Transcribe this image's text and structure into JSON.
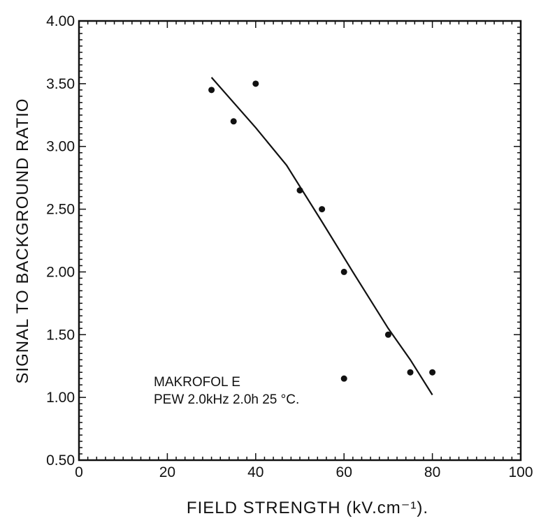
{
  "chart_data": {
    "type": "scatter",
    "xlabel": "FIELD STRENGTH (kV.cm⁻¹).",
    "ylabel": "SIGNAL TO BACKGROUND RATIO",
    "xlim": [
      0,
      100
    ],
    "ylim": [
      0.5,
      4.0
    ],
    "x_ticks": [
      "0",
      "20",
      "40",
      "60",
      "80",
      "100"
    ],
    "y_ticks": [
      "0.50",
      "1.00",
      "1.50",
      "2.00",
      "2.50",
      "3.00",
      "3.50",
      "4.00"
    ],
    "grid": false,
    "series": [
      {
        "points": [
          {
            "x": 30,
            "y": 3.45
          },
          {
            "x": 35,
            "y": 3.2
          },
          {
            "x": 40,
            "y": 3.5
          },
          {
            "x": 50,
            "y": 2.65
          },
          {
            "x": 55,
            "y": 2.5
          },
          {
            "x": 60,
            "y": 2.0
          },
          {
            "x": 60,
            "y": 1.15
          },
          {
            "x": 70,
            "y": 1.5
          },
          {
            "x": 75,
            "y": 1.2
          },
          {
            "x": 80,
            "y": 1.2
          }
        ]
      }
    ],
    "fit_line": [
      {
        "x": 30,
        "y": 3.55
      },
      {
        "x": 40,
        "y": 3.15
      },
      {
        "x": 47,
        "y": 2.85
      },
      {
        "x": 55,
        "y": 2.4
      },
      {
        "x": 62,
        "y": 2.0
      },
      {
        "x": 70,
        "y": 1.55
      },
      {
        "x": 75,
        "y": 1.3
      },
      {
        "x": 80,
        "y": 1.02
      }
    ],
    "annotation": {
      "line1": "MAKROFOL E",
      "line2": "PEW 2.0kHz 2.0h 25 °C."
    }
  }
}
